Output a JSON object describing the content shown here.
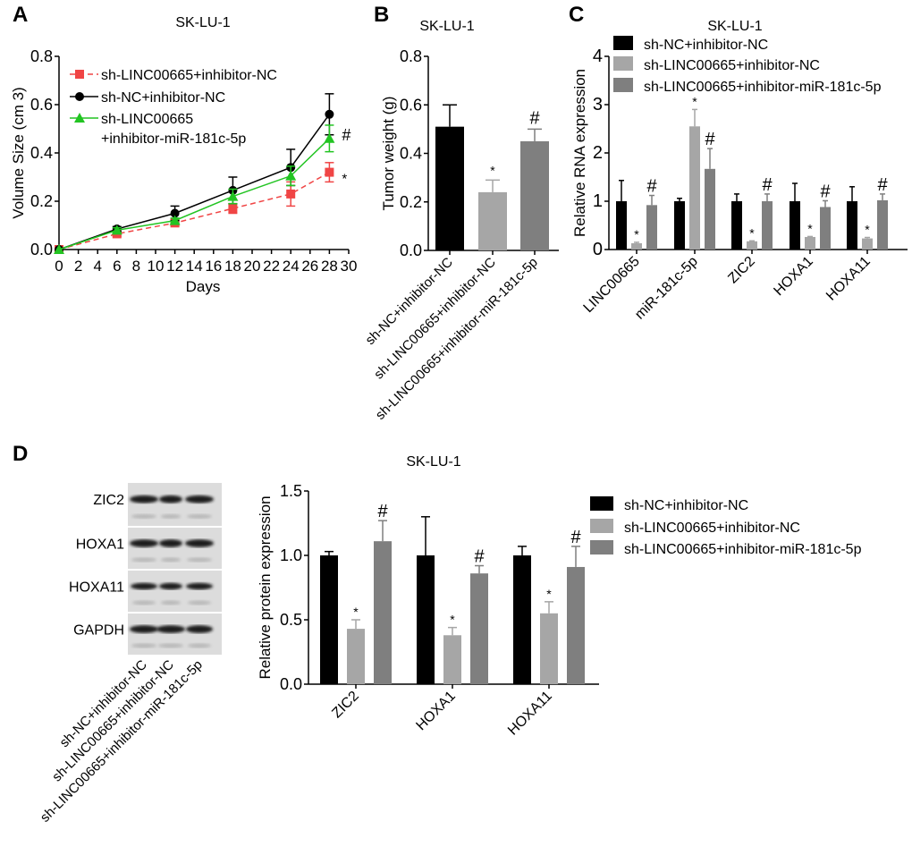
{
  "colors": {
    "black": "#000000",
    "light": "#a6a6a6",
    "dark": "#7f7f7f",
    "red": "#f04545",
    "green": "#22c422"
  },
  "chart_data": [
    {
      "panel": "A",
      "type": "line",
      "title": "SK-LU-1",
      "xlabel": "Days",
      "ylabel": "Volume Size (cm 3)",
      "xlim": [
        0,
        30
      ],
      "ylim": [
        0,
        0.8
      ],
      "xticks": [
        0,
        2,
        4,
        6,
        8,
        10,
        12,
        14,
        16,
        18,
        20,
        22,
        24,
        26,
        28,
        30
      ],
      "yticks": [
        "0.0",
        "0.2",
        "0.4",
        "0.6",
        "0.8"
      ],
      "x": [
        0,
        6,
        12,
        18,
        24,
        28
      ],
      "legend_position": "top-left",
      "series": [
        {
          "name": "sh-LINC00665+inhibitor-NC",
          "color": "#f04545",
          "marker": "square",
          "dashed": true,
          "values": [
            0,
            0.065,
            0.11,
            0.17,
            0.23,
            0.32
          ],
          "errors": [
            0,
            0.01,
            0.01,
            0.02,
            0.05,
            0.04
          ],
          "annotation": "*"
        },
        {
          "name": "sh-NC+inhibitor-NC",
          "color": "#000000",
          "marker": "circle",
          "dashed": false,
          "values": [
            0,
            0.085,
            0.15,
            0.245,
            0.34,
            0.56
          ],
          "errors": [
            0,
            0.01,
            0.03,
            0.055,
            0.075,
            0.085
          ],
          "annotation": ""
        },
        {
          "name": "sh-LINC00665\n+inhibitor-miR-181c-5p",
          "name_lines": [
            "sh-LINC00665",
            "+inhibitor-miR-181c-5p"
          ],
          "color": "#22c422",
          "marker": "triangle",
          "dashed": false,
          "values": [
            0,
            0.08,
            0.12,
            0.22,
            0.305,
            0.46
          ],
          "errors": [
            0,
            0.01,
            0.01,
            0.03,
            0.04,
            0.055
          ],
          "annotation": "#"
        }
      ]
    },
    {
      "panel": "B",
      "type": "bar",
      "title": "SK-LU-1",
      "xlabel": "",
      "ylabel": "Tumor weight (g)",
      "ylim": [
        0,
        0.8
      ],
      "yticks": [
        "0.0",
        "0.2",
        "0.4",
        "0.6",
        "0.8"
      ],
      "categories": [
        "sh-NC+inhibitor-NC",
        "sh-LINC00665+inhibitor-NC",
        "sh-LINC00665+inhibitor-miR-181c-5p"
      ],
      "values": [
        0.51,
        0.24,
        0.45
      ],
      "errors": [
        0.09,
        0.05,
        0.05
      ],
      "annotations": [
        "",
        "*",
        "#"
      ]
    },
    {
      "panel": "C",
      "type": "bar",
      "title": "SK-LU-1",
      "xlabel": "",
      "ylabel": "Relative RNA expression",
      "ylim": [
        0,
        4
      ],
      "yticks": [
        "0",
        "1",
        "2",
        "3",
        "4"
      ],
      "categories": [
        "LINC00665",
        "miR-181c-5p",
        "ZIC2",
        "HOXA1",
        "HOXA11"
      ],
      "legend_position": "top",
      "series": [
        {
          "name": "sh-NC+inhibitor-NC",
          "values": [
            1,
            1,
            1,
            1,
            1
          ],
          "errors": [
            0.43,
            0.06,
            0.15,
            0.37,
            0.3
          ],
          "annotations": [
            "",
            "",
            "",
            "",
            ""
          ]
        },
        {
          "name": "sh-LINC00665+inhibitor-NC",
          "values": [
            0.13,
            2.55,
            0.17,
            0.26,
            0.23
          ],
          "errors": [
            0.02,
            0.35,
            0.01,
            0.01,
            0.02
          ],
          "annotations": [
            "*",
            "*",
            "*",
            "*",
            "*"
          ]
        },
        {
          "name": "sh-LINC00665+inhibitor-miR-181c-5p",
          "values": [
            0.92,
            1.67,
            1.0,
            0.88,
            1.02
          ],
          "errors": [
            0.2,
            0.42,
            0.15,
            0.13,
            0.13
          ],
          "annotations": [
            "#",
            "#",
            "#",
            "#",
            "#"
          ]
        }
      ]
    },
    {
      "panel": "D",
      "type": "bar",
      "title": "SK-LU-1",
      "xlabel": "",
      "ylabel": "Relative protein expression",
      "ylim": [
        0,
        1.5
      ],
      "yticks": [
        "0.0",
        "0.5",
        "1.0",
        "1.5"
      ],
      "categories": [
        "ZIC2",
        "HOXA1",
        "HOXA11"
      ],
      "legend_position": "right",
      "series": [
        {
          "name": "sh-NC+inhibitor-NC",
          "values": [
            1,
            1,
            1
          ],
          "errors": [
            0.03,
            0.3,
            0.07
          ],
          "annotations": [
            "",
            "",
            ""
          ]
        },
        {
          "name": "sh-LINC00665+inhibitor-NC",
          "values": [
            0.43,
            0.38,
            0.55
          ],
          "errors": [
            0.07,
            0.06,
            0.09
          ],
          "annotations": [
            "*",
            "*",
            "*"
          ]
        },
        {
          "name": "sh-LINC00665+inhibitor-miR-181c-5p",
          "values": [
            1.11,
            0.86,
            0.91
          ],
          "errors": [
            0.16,
            0.06,
            0.16
          ],
          "annotations": [
            "#",
            "#",
            "#"
          ]
        }
      ]
    }
  ],
  "western_blot": {
    "rows": [
      "ZIC2",
      "HOXA1",
      "HOXA11",
      "GAPDH"
    ],
    "lanes": [
      "sh-NC+inhibitor-NC",
      "sh-LINC00665+inhibitor-NC",
      "sh-LINC00665+inhibitor-miR-181c-5p"
    ]
  },
  "panel_labels": [
    "A",
    "B",
    "C",
    "D"
  ]
}
